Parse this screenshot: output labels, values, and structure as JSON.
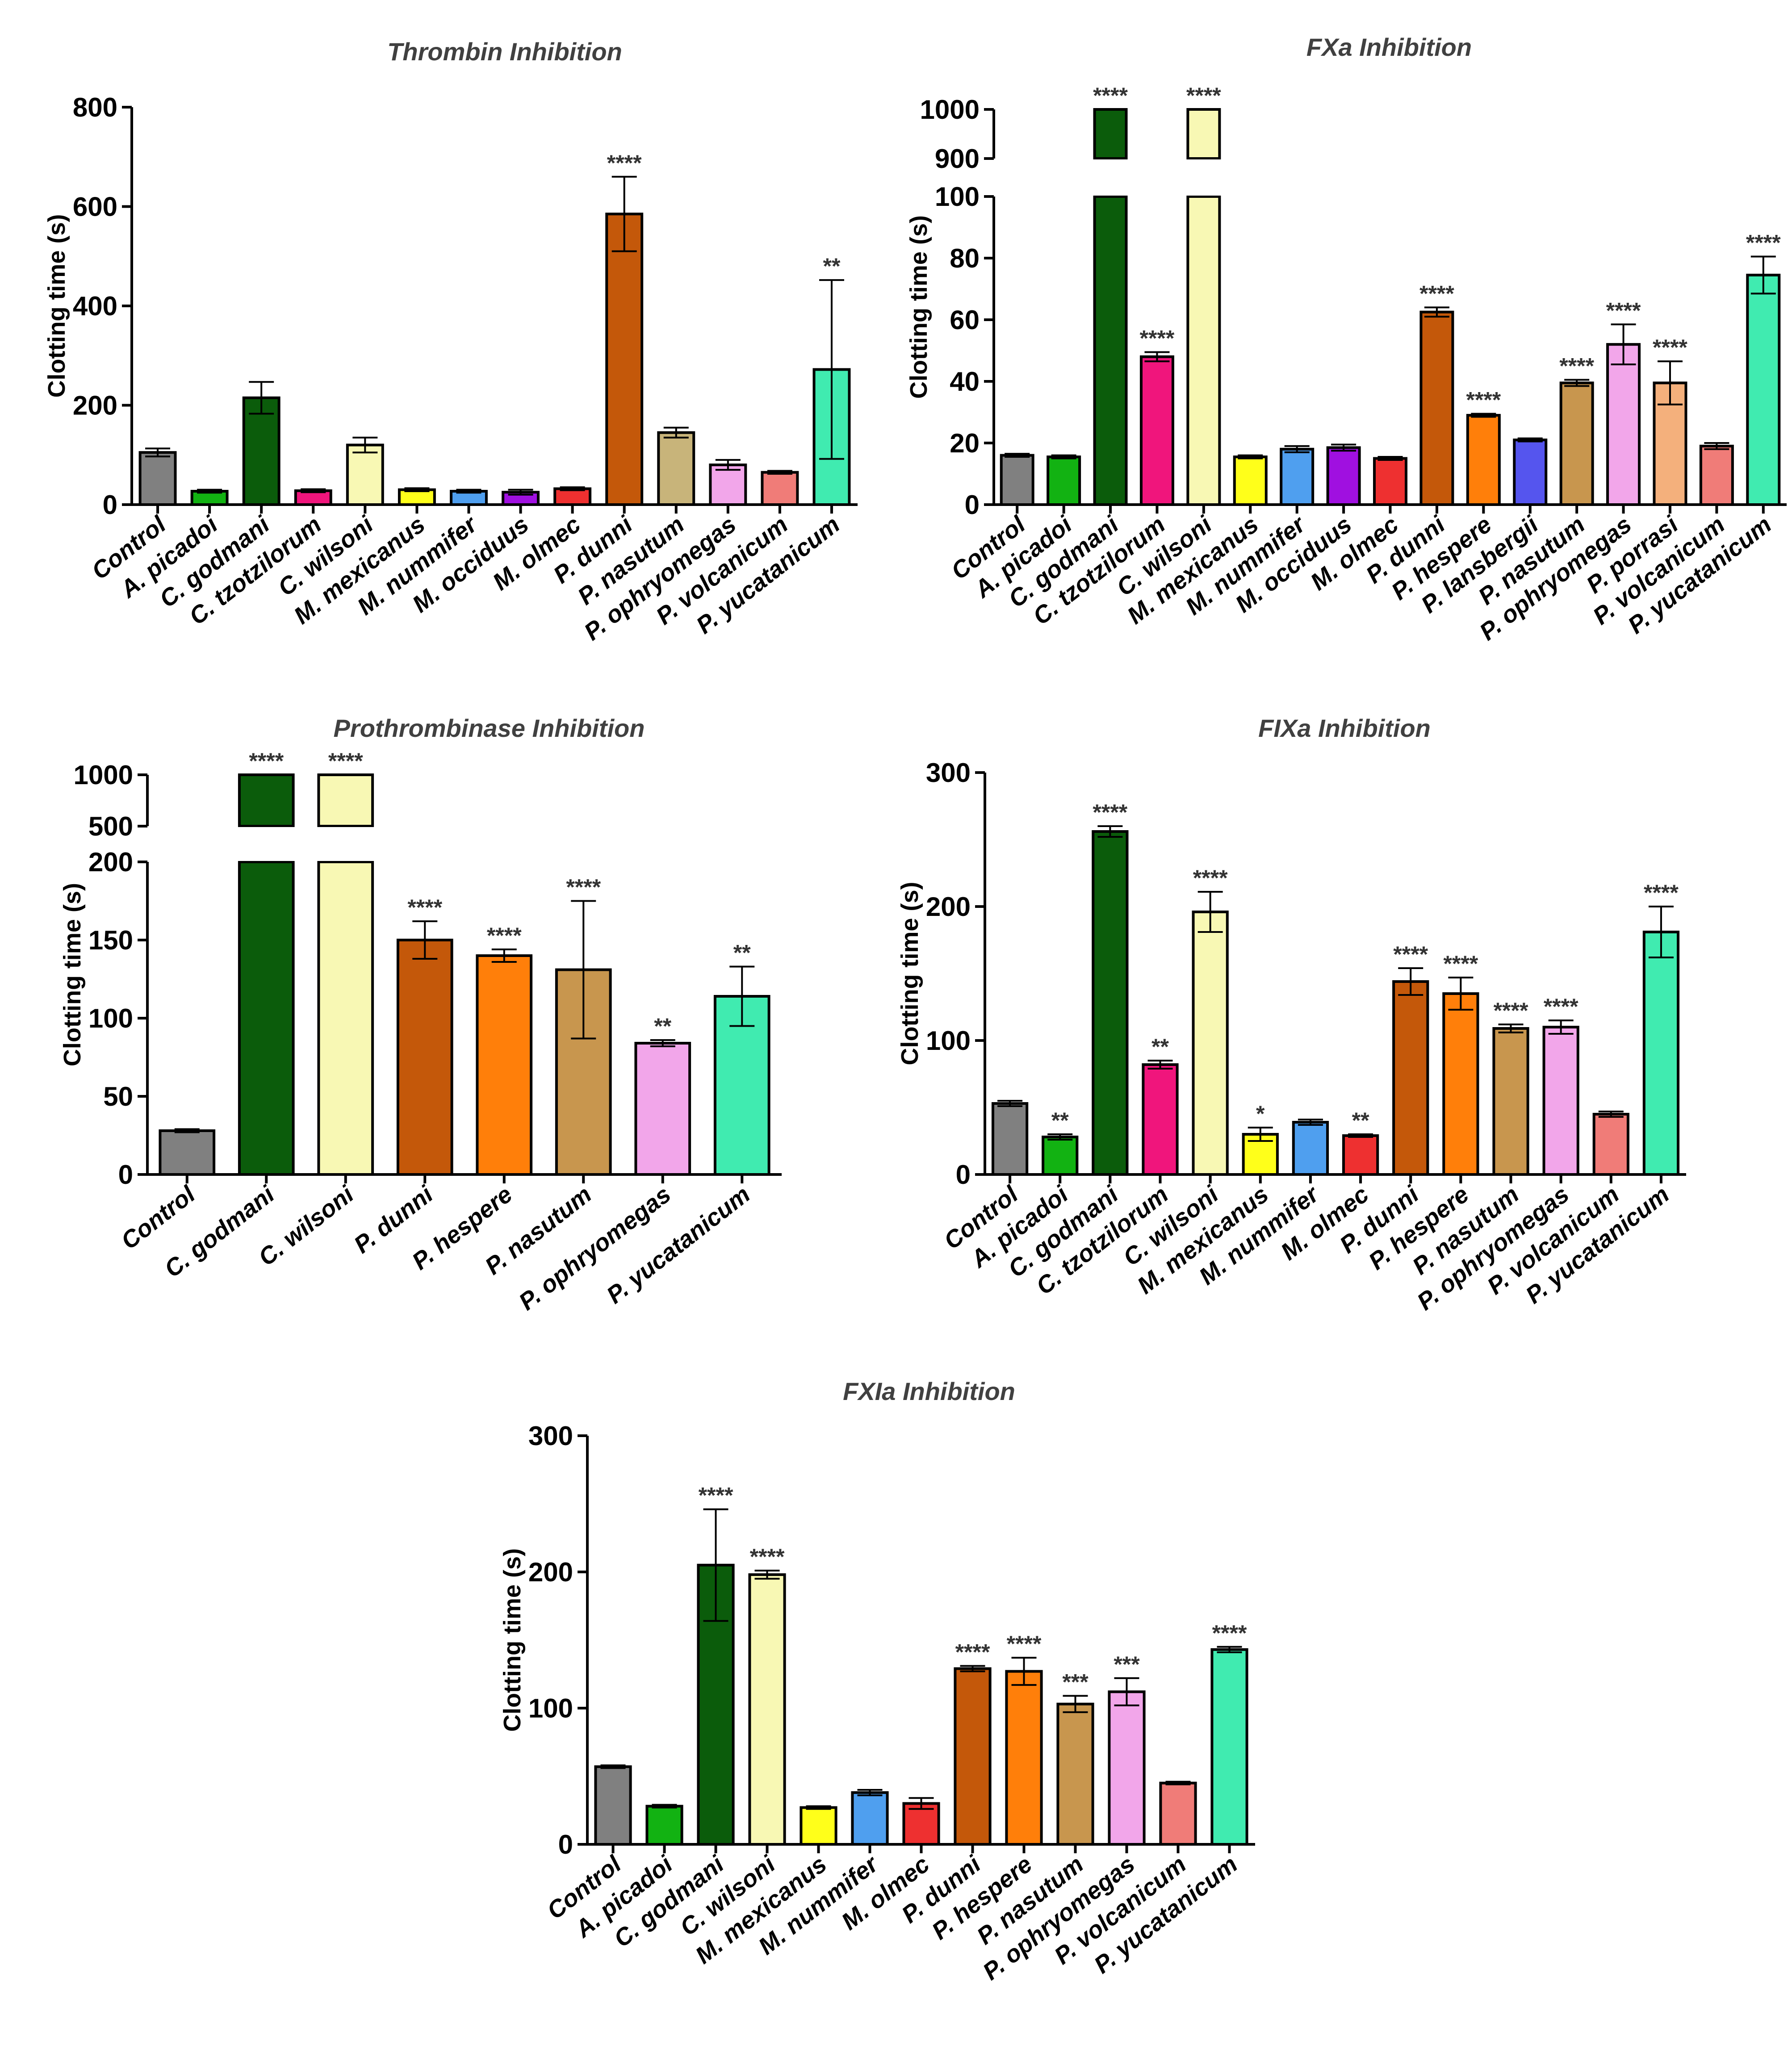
{
  "chart_data": [
    {
      "id": "thrombin",
      "type": "bar",
      "title": "Thrombin Inhibition",
      "ylabel": "Clotting time (s)",
      "xlabel": "",
      "ylim": [
        0,
        800
      ],
      "yticks": [
        0,
        200,
        400,
        600,
        800
      ],
      "categories": [
        "Control",
        "A. picadoi",
        "C. godmani",
        "C. tzotzilorum",
        "C. wilsoni",
        "M. mexicanus",
        "M. nummifer",
        "M. occiduus",
        "M. olmec",
        "P. dunni",
        "P. nasutum",
        "P. ophryomegas",
        "P. volcanicum",
        "P. yucatanicum"
      ],
      "values": [
        105,
        27,
        215,
        28,
        120,
        30,
        27,
        25,
        32,
        585,
        145,
        80,
        65,
        272
      ],
      "errors": [
        8,
        3,
        32,
        3,
        15,
        3,
        3,
        5,
        3,
        75,
        10,
        10,
        3,
        180
      ],
      "significance": [
        "",
        "",
        "",
        "",
        "",
        "",
        "",
        "",
        "",
        "****",
        "",
        "",
        "",
        "**"
      ],
      "colors": [
        "#808080",
        "#12b212",
        "#0b5c0b",
        "#f0157c",
        "#f8f8b4",
        "#ffff1a",
        "#4f9fef",
        "#a010e0",
        "#ee3030",
        "#c4580a",
        "#c8b47a",
        "#f2a6ea",
        "#f07c78",
        "#40ebb0"
      ]
    },
    {
      "id": "fxa",
      "type": "bar",
      "title": "FXa Inhibition",
      "ylabel": "Clotting time (s)",
      "xlabel": "",
      "ylim_lower": [
        0,
        100
      ],
      "ylim_upper": [
        900,
        1000
      ],
      "yticks_lower": [
        0,
        20,
        40,
        60,
        80,
        100
      ],
      "yticks_upper": [
        900,
        1000
      ],
      "categories": [
        "Control",
        "A. picadoi",
        "C. godmani",
        "C. tzotzilorum",
        "C. wilsoni",
        "M. mexicanus",
        "M. nummifer",
        "M. occiduus",
        "M. olmec",
        "P. dunni",
        "P. hespere",
        "P. lansbergii",
        "P. nasutum",
        "P. ophryomegas",
        "P. porrasi",
        "P. volcanicum",
        "P. yucatanicum"
      ],
      "values": [
        16,
        15.5,
        1000,
        48,
        1000,
        15.5,
        18,
        18.5,
        15,
        62.5,
        29,
        21,
        39.5,
        52,
        39.5,
        19,
        74.5
      ],
      "errors": [
        0.5,
        0.5,
        0,
        1.5,
        0,
        0.5,
        1,
        1,
        0.5,
        1.5,
        0.5,
        0.5,
        1,
        6.5,
        7,
        1,
        6
      ],
      "significance": [
        "",
        "",
        "****",
        "****",
        "****",
        "",
        "",
        "",
        "",
        "****",
        "****",
        "",
        "****",
        "****",
        "****",
        "",
        "****"
      ],
      "colors": [
        "#808080",
        "#12b212",
        "#0b5c0b",
        "#f0157c",
        "#f8f8b4",
        "#ffff1a",
        "#4f9fef",
        "#a010e0",
        "#ee3030",
        "#c4580a",
        "#ff7f0a",
        "#5555ee",
        "#c8964e",
        "#f2a6ea",
        "#f4b07c",
        "#f07c78",
        "#40ebb0"
      ]
    },
    {
      "id": "prothrombinase",
      "type": "bar",
      "title": "Prothrombinase Inhibition",
      "ylabel": "Clotting time (s)",
      "xlabel": "",
      "ylim_lower": [
        0,
        200
      ],
      "ylim_upper": [
        500,
        1000
      ],
      "yticks_lower": [
        0,
        50,
        100,
        150,
        200
      ],
      "yticks_upper": [
        500,
        1000
      ],
      "categories": [
        "Control",
        "C. godmani",
        "C. wilsoni",
        "P. dunni",
        "P. hespere",
        "P. nasutum",
        "P. ophryomegas",
        "P. yucatanicum"
      ],
      "values": [
        28,
        1000,
        1000,
        150,
        140,
        131,
        84,
        114
      ],
      "errors": [
        1,
        0,
        0,
        12,
        4,
        44,
        2,
        19
      ],
      "significance": [
        "",
        "****",
        "****",
        "****",
        "****",
        "****",
        "**",
        "**"
      ],
      "colors": [
        "#808080",
        "#0b5c0b",
        "#f8f8b4",
        "#c4580a",
        "#ff7f0a",
        "#c8964e",
        "#f2a6ea",
        "#40ebb0"
      ]
    },
    {
      "id": "fixa",
      "type": "bar",
      "title": "FIXa Inhibition",
      "ylabel": "Clotting time (s)",
      "xlabel": "",
      "ylim": [
        0,
        300
      ],
      "yticks": [
        0,
        100,
        200,
        300
      ],
      "categories": [
        "Control",
        "A. picadoi",
        "C. godmani",
        "C. tzotzilorum",
        "C. wilsoni",
        "M. mexicanus",
        "M. nummifer",
        "M. olmec",
        "P. dunni",
        "P. hespere",
        "P. nasutum",
        "P. ophryomegas",
        "P. volcanicum",
        "P. yucatanicum"
      ],
      "values": [
        53,
        28,
        256,
        82,
        196,
        30,
        39,
        29,
        144,
        135,
        109,
        110,
        45,
        181
      ],
      "errors": [
        2,
        2,
        4,
        3,
        15,
        5,
        2,
        1,
        10,
        12,
        3,
        5,
        2,
        19
      ],
      "significance": [
        "",
        "**",
        "****",
        "**",
        "****",
        "*",
        "",
        "**",
        "****",
        "****",
        "****",
        "****",
        "",
        "****"
      ],
      "colors": [
        "#808080",
        "#12b212",
        "#0b5c0b",
        "#f0157c",
        "#f8f8b4",
        "#ffff1a",
        "#4f9fef",
        "#ee3030",
        "#c4580a",
        "#ff7f0a",
        "#c8964e",
        "#f2a6ea",
        "#f07c78",
        "#40ebb0"
      ]
    },
    {
      "id": "fxia",
      "type": "bar",
      "title": "FXIa Inhibition",
      "ylabel": "Clotting time (s)",
      "xlabel": "",
      "ylim": [
        0,
        300
      ],
      "yticks": [
        0,
        100,
        200,
        300
      ],
      "categories": [
        "Control",
        "A. picadoi",
        "C. godmani",
        "C. wilsoni",
        "M. mexicanus",
        "M. nummifer",
        "M. olmec",
        "P. dunni",
        "P. hespere",
        "P. nasutum",
        "P. ophryomegas",
        "P. volcanicum",
        "P. yucatanicum"
      ],
      "values": [
        57,
        28,
        205,
        198,
        27,
        38,
        30,
        129,
        127,
        103,
        112,
        45,
        143
      ],
      "errors": [
        1,
        1,
        41,
        3,
        1,
        2,
        4,
        2,
        10,
        6,
        10,
        1,
        2
      ],
      "significance": [
        "",
        "",
        "****",
        "****",
        "",
        "",
        "",
        "****",
        "****",
        "***",
        "***",
        "",
        "****"
      ],
      "colors": [
        "#808080",
        "#12b212",
        "#0b5c0b",
        "#f8f8b4",
        "#ffff1a",
        "#4f9fef",
        "#ee3030",
        "#c4580a",
        "#ff7f0a",
        "#c8964e",
        "#f2a6ea",
        "#f07c78",
        "#40ebb0"
      ]
    }
  ]
}
